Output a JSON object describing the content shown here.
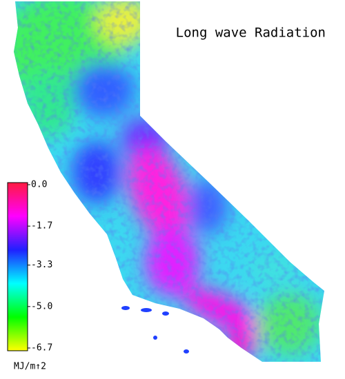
{
  "title": "Long wave Radiation",
  "colorbar": {
    "lim": [
      -6.7,
      0
    ],
    "ticks": [
      {
        "value": 0,
        "label": "0.0"
      },
      -1.7,
      -3.3,
      {
        "value": -5,
        "label": "-5.0"
      },
      -6.7
    ],
    "label": "MJ/m↑2",
    "colors": [
      "#ff1a40",
      "#ff00ff",
      "#2020ff",
      "#00ffff",
      "#00ff00",
      "#ffff00"
    ]
  }
}
